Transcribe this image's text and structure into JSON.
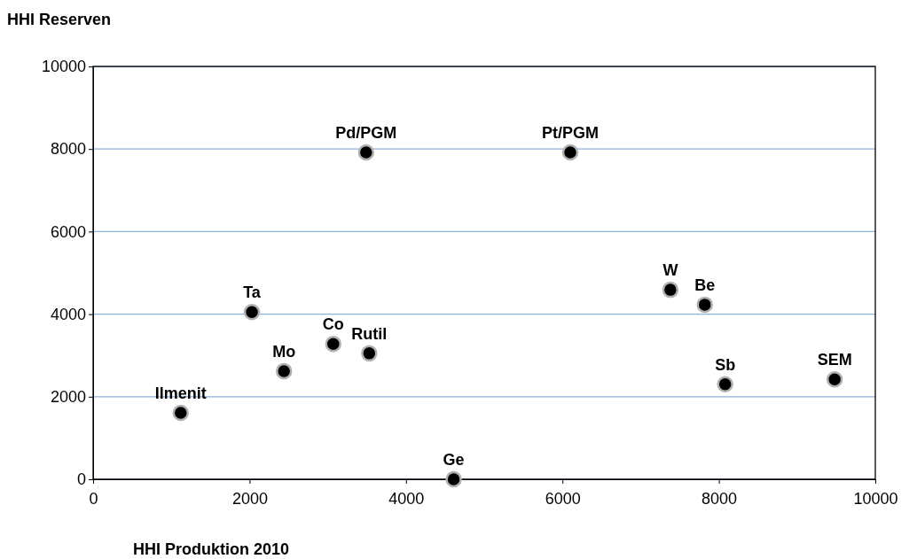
{
  "chart_data": {
    "type": "scatter",
    "xlabel": "HHI Produktion 2010",
    "ylabel": "HHI Reserven",
    "xlim": [
      0,
      10000
    ],
    "ylim": [
      0,
      10000
    ],
    "xticks": [
      0,
      2000,
      4000,
      6000,
      8000,
      10000
    ],
    "yticks": [
      0,
      2000,
      4000,
      6000,
      8000,
      10000
    ],
    "grid": "y",
    "marker": "circle",
    "series": [
      {
        "color": "#000000",
        "x": [
          1120,
          2030,
          2440,
          3070,
          3530,
          4610,
          3490,
          6100,
          7380,
          7820,
          8080,
          9480
        ],
        "values": [
          1610,
          4050,
          2620,
          3280,
          3050,
          0,
          7920,
          7920,
          4590,
          4230,
          2300,
          2420
        ]
      }
    ],
    "annotations": [
      {
        "text": "Ilmenit",
        "x": 1120,
        "y": 1610
      },
      {
        "text": "Ta",
        "x": 2030,
        "y": 4050
      },
      {
        "text": "Mo",
        "x": 2440,
        "y": 2620
      },
      {
        "text": "Co",
        "x": 3070,
        "y": 3280
      },
      {
        "text": "Rutil",
        "x": 3530,
        "y": 3050
      },
      {
        "text": "Ge",
        "x": 4610,
        "y": 0
      },
      {
        "text": "Pd/PGM",
        "x": 3490,
        "y": 7920
      },
      {
        "text": "Pt/PGM",
        "x": 6100,
        "y": 7920
      },
      {
        "text": "W",
        "x": 7380,
        "y": 4590
      },
      {
        "text": "Be",
        "x": 7820,
        "y": 4230
      },
      {
        "text": "Sb",
        "x": 8080,
        "y": 2300
      },
      {
        "text": "SEM",
        "x": 9480,
        "y": 2420
      }
    ]
  }
}
